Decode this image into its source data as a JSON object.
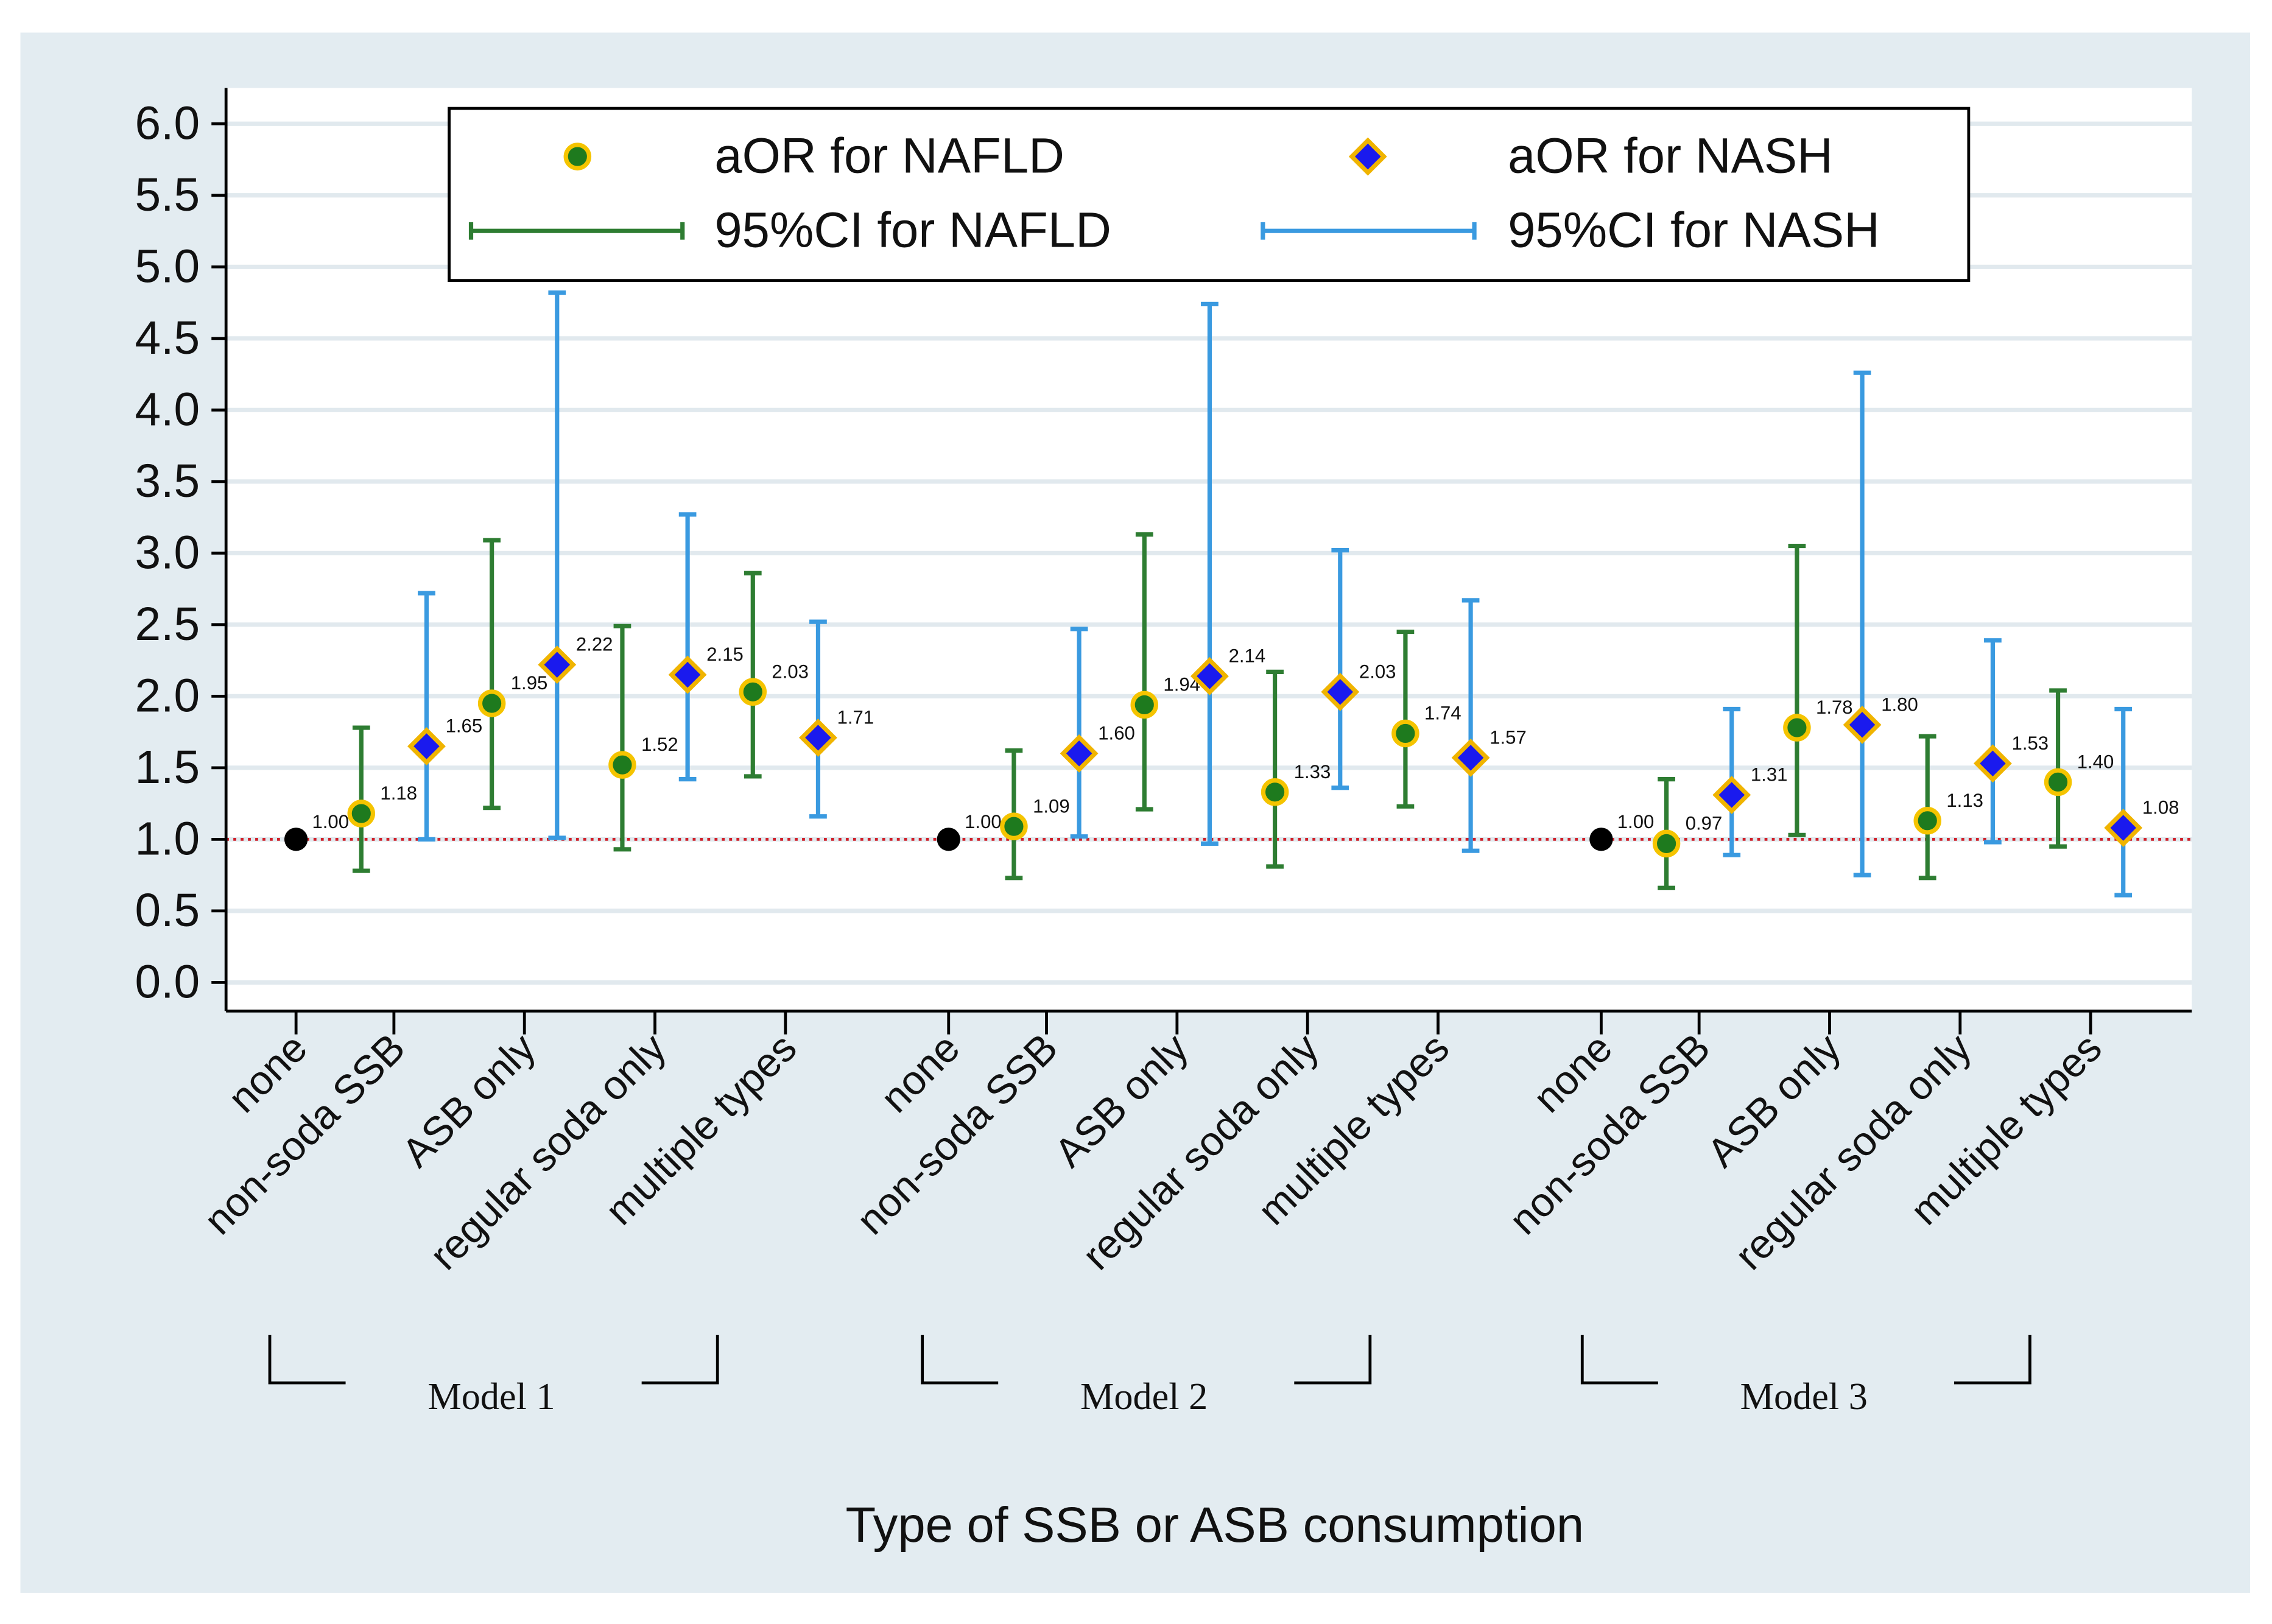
{
  "chart_data": {
    "type": "errorbar",
    "xlabel": "Type of SSB or ASB consumption",
    "groups": [
      "Model 1",
      "Model 2",
      "Model 3"
    ],
    "categories": [
      "none",
      "non-soda SSB",
      "ASB only",
      "regular soda only",
      "multiple types"
    ],
    "reference": {
      "values": [
        1,
        1,
        1
      ],
      "value_labels": [
        "1.00",
        "1.00",
        "1.00"
      ],
      "color": "#000000"
    },
    "reference_line": 1,
    "series": [
      {
        "name": "aOR for NAFLD",
        "ci_name": "95%CI for NAFLD",
        "marker": "circle",
        "color": "#1e7a1e",
        "edge_color": "#f5c400",
        "ci_color": "#2e7d32",
        "values": [
          [
            1.18,
            1.95,
            1.52,
            2.03
          ],
          [
            1.09,
            1.94,
            1.33,
            1.74
          ],
          [
            0.97,
            1.78,
            1.13,
            1.4
          ]
        ],
        "value_labels": [
          [
            "1.18",
            "1.95",
            "1.52",
            "2.03"
          ],
          [
            "1.09",
            "1.94",
            "1.33",
            "1.74"
          ],
          [
            "0.97",
            "1.78",
            "1.13",
            "1.40"
          ]
        ],
        "lower": [
          [
            0.78,
            1.22,
            0.93,
            1.44
          ],
          [
            0.73,
            1.21,
            0.81,
            1.23
          ],
          [
            0.66,
            1.03,
            0.73,
            0.95
          ]
        ],
        "upper": [
          [
            1.78,
            3.09,
            2.49,
            2.86
          ],
          [
            1.62,
            3.13,
            2.17,
            2.45
          ],
          [
            1.42,
            3.05,
            1.72,
            2.04
          ]
        ]
      },
      {
        "name": "aOR for NASH",
        "ci_name": "95%CI for NASH",
        "marker": "diamond",
        "color": "#1a1aee",
        "edge_color": "#f0b400",
        "ci_color": "#3a9ae0",
        "values": [
          [
            1.65,
            2.22,
            2.15,
            1.71
          ],
          [
            1.6,
            2.14,
            2.03,
            1.57
          ],
          [
            1.31,
            1.8,
            1.53,
            1.08
          ]
        ],
        "value_labels": [
          [
            "1.65",
            "2.22",
            "2.15",
            "1.71"
          ],
          [
            "1.60",
            "2.14",
            "2.03",
            "1.57"
          ],
          [
            "1.31",
            "1.80",
            "1.53",
            "1.08"
          ]
        ],
        "lower": [
          [
            1.0,
            1.01,
            1.42,
            1.16
          ],
          [
            1.02,
            0.97,
            1.36,
            0.92
          ],
          [
            0.89,
            0.75,
            0.98,
            0.61
          ]
        ],
        "upper": [
          [
            2.72,
            4.82,
            3.27,
            2.52
          ],
          [
            2.47,
            4.74,
            3.02,
            2.67
          ],
          [
            1.91,
            4.26,
            2.39,
            1.91
          ]
        ]
      }
    ],
    "ylim": [
      -0.2,
      6.25
    ],
    "yticks": [
      {
        "value": 0,
        "label": "0.0"
      },
      0.5,
      {
        "value": 1,
        "label": "1.0"
      },
      1.5,
      {
        "value": 2,
        "label": "2.0"
      },
      2.5,
      {
        "value": 3,
        "label": "3.0"
      },
      3.5,
      {
        "value": 4,
        "label": "4.0"
      },
      4.5,
      {
        "value": 5,
        "label": "5.0"
      },
      5.5,
      {
        "value": 6,
        "label": "6.0"
      }
    ],
    "grid": true
  }
}
